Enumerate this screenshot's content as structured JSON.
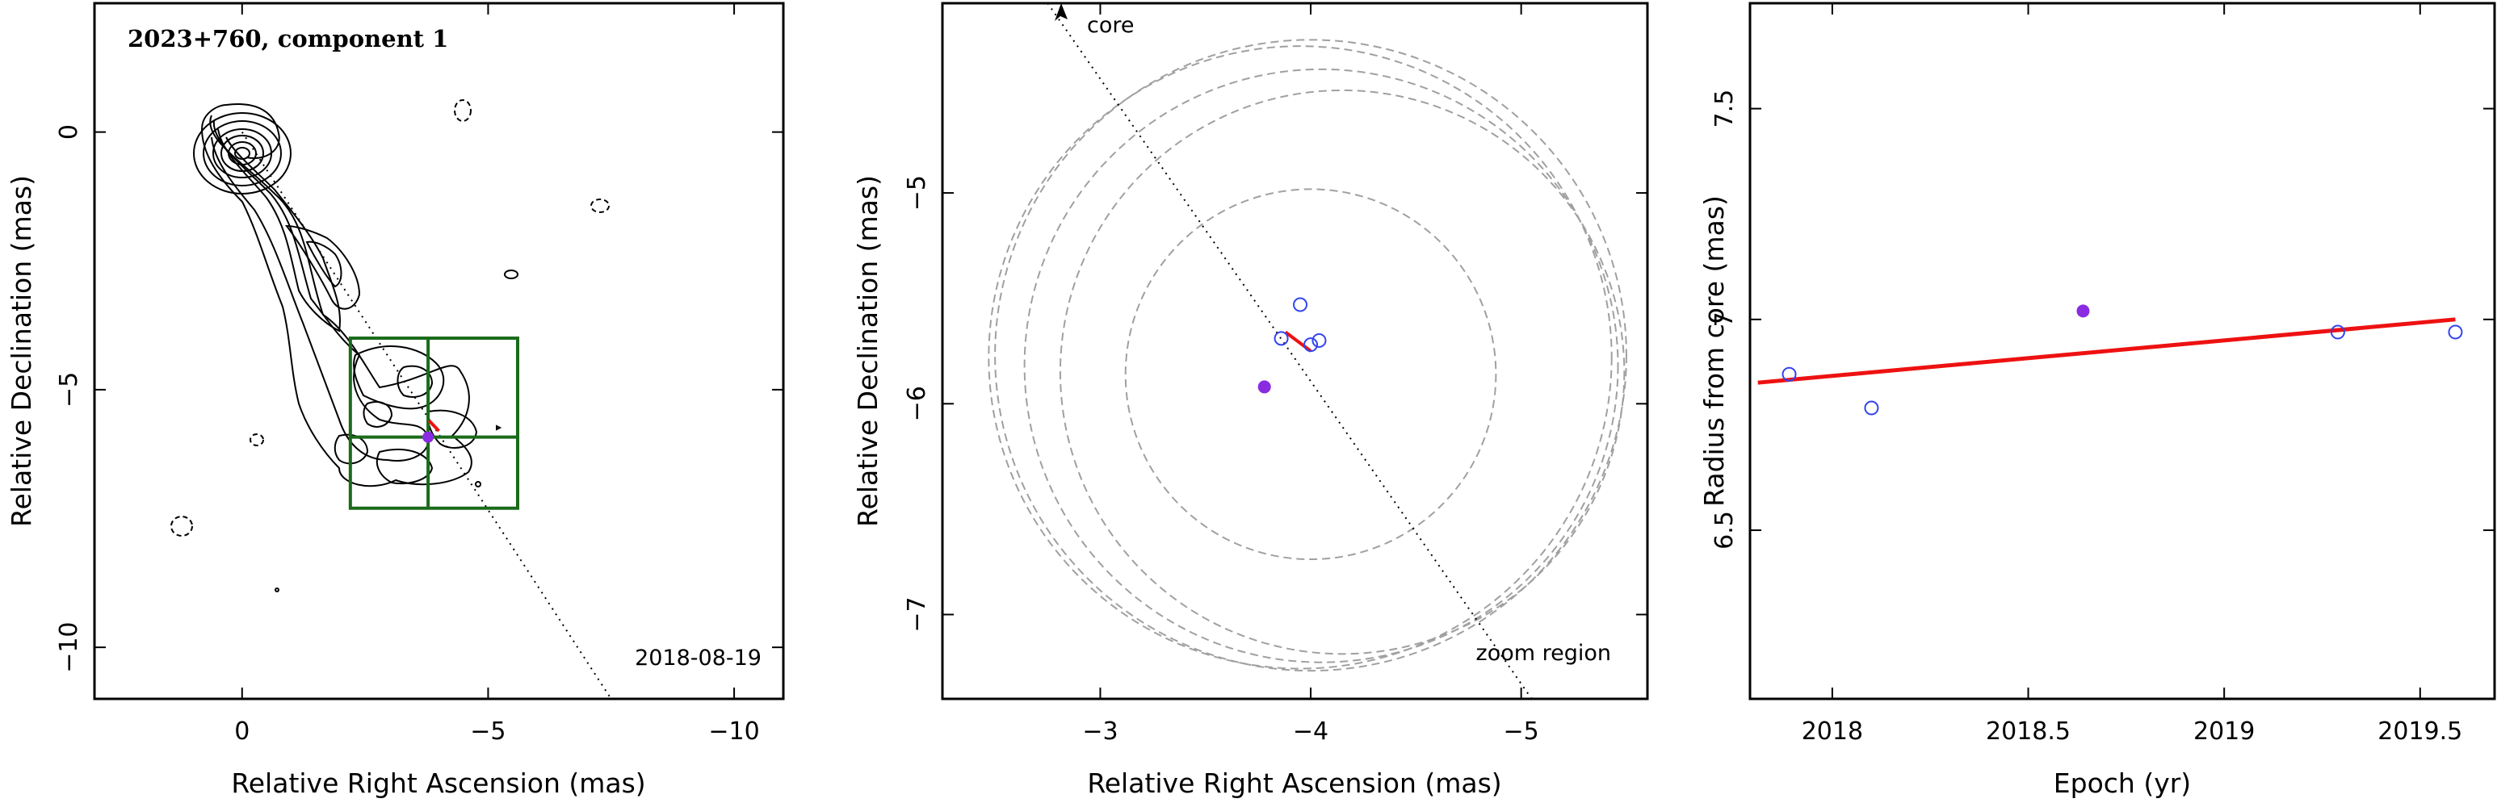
{
  "figure": {
    "left_panel": {
      "title": "2023+760, component 1",
      "date": "2018-08-19",
      "xlabel": "Relative Right Ascension (mas)",
      "ylabel": "Relative Declination (mas)",
      "xlim": [
        3,
        -11
      ],
      "ylim": [
        -11,
        2.5
      ],
      "xticks": [
        0,
        -5,
        -10
      ],
      "xtick_labels": [
        "0",
        "−5",
        "−10"
      ],
      "yticks": [
        0,
        -5,
        -10
      ],
      "ytick_labels": [
        "0",
        "−5",
        "−10"
      ]
    },
    "middle_panel": {
      "xlabel": "Relative Right Ascension (mas)",
      "ylabel": "Relative Declination (mas)",
      "core_label": "core",
      "zoom_label": "zoom region",
      "xlim": [
        -2.25,
        -5.6
      ],
      "ylim": [
        -7.4,
        -4.1
      ],
      "xticks": [
        -3,
        -4,
        -5
      ],
      "xtick_labels": [
        "−3",
        "−4",
        "−5"
      ],
      "yticks": [
        -5,
        -6,
        -7
      ],
      "ytick_labels": [
        "−5",
        "−6",
        "−7"
      ]
    },
    "right_panel": {
      "xlabel": "Epoch (yr)",
      "ylabel": "Radius from core (mas)",
      "xlim": [
        17.78,
        19.68
      ],
      "ylim": [
        6.1,
        7.75
      ],
      "xticks": [
        17.99,
        18.49,
        18.99,
        19.49
      ],
      "xtick_labels": [
        "2018",
        "2018.5",
        "2019",
        "2019.5"
      ],
      "yticks": [
        6.5,
        7.0,
        7.5
      ],
      "ytick_labels": [
        "6.5",
        "7",
        "7.5"
      ]
    }
  },
  "colors": {
    "contour": "#000000",
    "box": "#1a6b1a",
    "open_marker": "#3344ee",
    "filled_marker": "#8a2be2",
    "fit_line": "#ee1111",
    "circles": "#a0a0a0"
  },
  "chart_data": [
    {
      "type": "contour",
      "title": "2023+760, component 1",
      "xlabel": "Relative Right Ascension (mas)",
      "ylabel": "Relative Declination (mas)",
      "date": "2018-08-19",
      "jet_direction_line": {
        "x": [
          0,
          -7.5
        ],
        "y": [
          0,
          -11
        ]
      },
      "zoom_box": {
        "x": [
          -2.2,
          -5.6
        ],
        "y": [
          -4.0,
          -7.3
        ]
      },
      "component_filled": {
        "x": -3.78,
        "y": -5.92
      },
      "component_fit": {
        "x": [
          -3.8,
          -4.0
        ],
        "y": [
          -5.6,
          -5.8
        ]
      }
    },
    {
      "type": "scatter",
      "xlabel": "Relative Right Ascension (mas)",
      "ylabel": "Relative Declination (mas)",
      "open_points": [
        {
          "x": -3.86,
          "y": -5.69
        },
        {
          "x": -3.95,
          "y": -5.53
        },
        {
          "x": -4.0,
          "y": -5.72
        },
        {
          "x": -4.04,
          "y": -5.7
        }
      ],
      "filled_point": {
        "x": -3.78,
        "y": -5.92
      },
      "fit_segment": {
        "x": [
          -3.88,
          -4.0
        ],
        "y": [
          -5.66,
          -5.75
        ]
      },
      "direction_line": {
        "x": [
          -2.75,
          -5.05
        ],
        "y": [
          -4.1,
          -7.4
        ]
      },
      "circles": [
        {
          "cx": -3.95,
          "cy": -5.78,
          "r": 1.48
        },
        {
          "cx": -4.0,
          "cy": -5.77,
          "r": 1.5
        },
        {
          "cx": -4.05,
          "cy": -5.82,
          "r": 1.41
        },
        {
          "cx": -4.15,
          "cy": -5.85,
          "r": 1.34
        },
        {
          "cx": -4.0,
          "cy": -5.86,
          "r": 0.88
        }
      ]
    },
    {
      "type": "scatter",
      "xlabel": "Epoch (yr)",
      "ylabel": "Radius from core (mas)",
      "series": [
        {
          "values": [
            {
              "x": 17.88,
              "y": 6.87
            },
            {
              "x": 18.09,
              "y": 6.79
            },
            {
              "x": 19.28,
              "y": 6.97
            },
            {
              "x": 19.58,
              "y": 6.97
            }
          ]
        }
      ],
      "filled_point": {
        "x": 18.63,
        "y": 7.02
      },
      "fit_line": {
        "x": [
          17.8,
          19.58
        ],
        "y": [
          6.85,
          7.0
        ]
      }
    }
  ]
}
